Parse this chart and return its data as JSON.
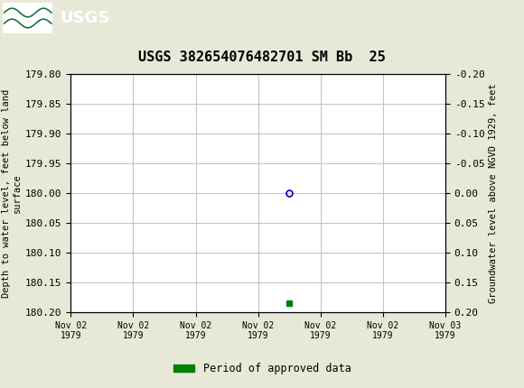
{
  "title": "USGS 382654076482701 SM Bb  25",
  "title_fontsize": 11,
  "header_color": "#1a7040",
  "bg_color": "#e8e8d8",
  "plot_bg_color": "#ffffff",
  "ylabel_left": "Depth to water level, feet below land\nsurface",
  "ylabel_right": "Groundwater level above NGVD 1929, feet",
  "ylim_left": [
    179.8,
    180.2
  ],
  "ylim_right": [
    0.2,
    -0.2
  ],
  "yticks_left": [
    179.8,
    179.85,
    179.9,
    179.95,
    180.0,
    180.05,
    180.1,
    180.15,
    180.2
  ],
  "yticks_right": [
    0.2,
    0.15,
    0.1,
    0.05,
    0.0,
    -0.05,
    -0.1,
    -0.15,
    -0.2
  ],
  "xtick_labels": [
    "Nov 02\n1979",
    "Nov 02\n1979",
    "Nov 02\n1979",
    "Nov 02\n1979",
    "Nov 02\n1979",
    "Nov 02\n1979",
    "Nov 03\n1979"
  ],
  "data_point_x": 3.5,
  "data_point_y": 180.0,
  "data_point_color": "#0000cc",
  "green_square_x": 3.5,
  "green_square_y": 180.185,
  "green_square_color": "#008000",
  "legend_label": "Period of approved data",
  "legend_color": "#008000",
  "grid_color": "#c0c0c0",
  "font_family": "monospace",
  "xmin": 0,
  "xmax": 6
}
